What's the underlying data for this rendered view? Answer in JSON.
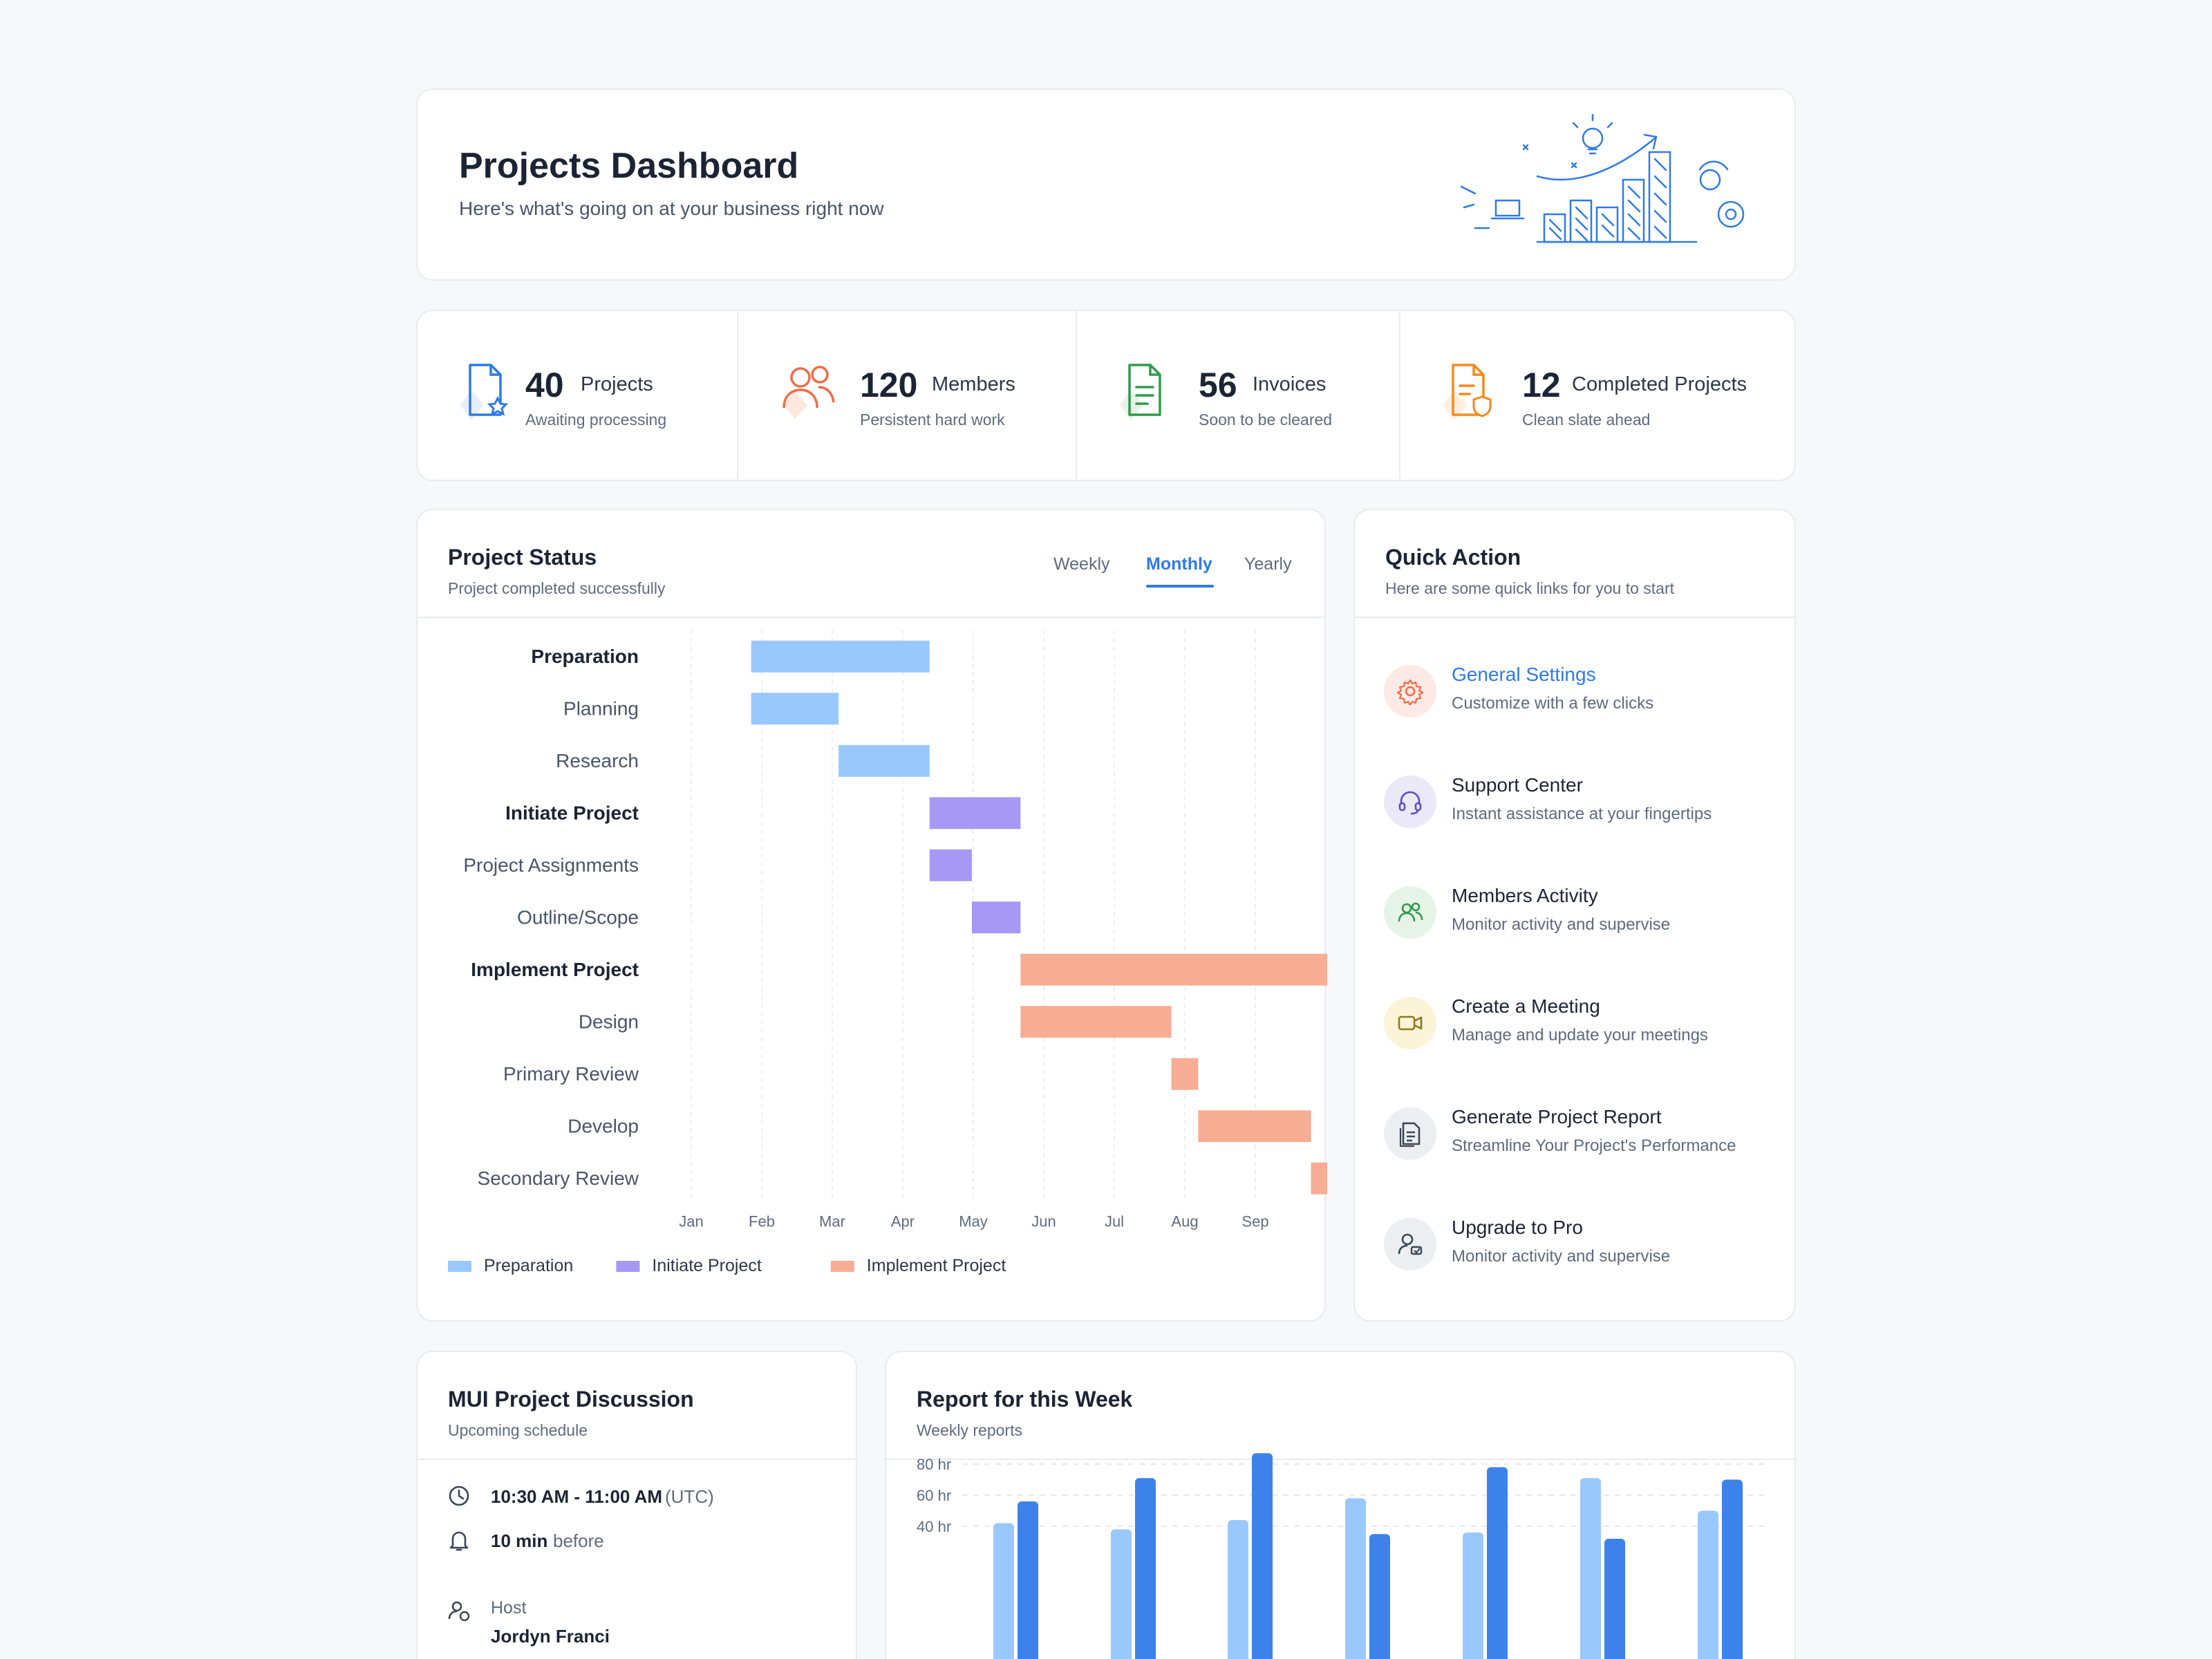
{
  "header": {
    "title": "Projects Dashboard",
    "subtitle": "Here's what's going on at your business right now"
  },
  "stats": [
    {
      "number": "40",
      "label": "Projects",
      "desc": "Awaiting processing",
      "icon": "document-star-icon",
      "color": "#2f7ae5"
    },
    {
      "number": "120",
      "label": "Members",
      "desc": "Persistent hard work",
      "icon": "users-icon",
      "color": "#f26b45"
    },
    {
      "number": "56",
      "label": "Invoices",
      "desc": "Soon to be cleared",
      "icon": "invoice-icon",
      "color": "#2e9a4a"
    },
    {
      "number": "12",
      "label": "Completed Projects",
      "desc": "Clean slate ahead",
      "icon": "document-shield-icon",
      "color": "#f5891f"
    }
  ],
  "project_status": {
    "title": "Project Status",
    "subtitle": "Project completed successfully",
    "tabs": [
      "Weekly",
      "Monthly",
      "Yearly"
    ],
    "active_tab": "Monthly"
  },
  "chart_data": {
    "type": "gantt",
    "x_ticks": [
      "Jan",
      "Feb",
      "Mar",
      "Apr",
      "May",
      "Jun",
      "Jul",
      "Aug",
      "Sep"
    ],
    "x_unit": "month",
    "tasks": [
      {
        "name": "Preparation",
        "group": "Preparation",
        "is_group": true,
        "start": 0.85,
        "end": 3.38
      },
      {
        "name": "Planning",
        "group": "Preparation",
        "is_group": false,
        "start": 0.85,
        "end": 2.09
      },
      {
        "name": "Research",
        "group": "Preparation",
        "is_group": false,
        "start": 2.09,
        "end": 3.38
      },
      {
        "name": "Initiate Project",
        "group": "Initiate Project",
        "is_group": true,
        "start": 3.38,
        "end": 4.67
      },
      {
        "name": "Project Assignments",
        "group": "Initiate Project",
        "is_group": false,
        "start": 3.38,
        "end": 3.98
      },
      {
        "name": "Outline/Scope",
        "group": "Initiate Project",
        "is_group": false,
        "start": 3.98,
        "end": 4.67
      },
      {
        "name": "Implement Project",
        "group": "Implement Project",
        "is_group": true,
        "start": 4.67,
        "end": 9.27
      },
      {
        "name": "Design",
        "group": "Implement Project",
        "is_group": false,
        "start": 4.67,
        "end": 6.81
      },
      {
        "name": "Primary Review",
        "group": "Implement Project",
        "is_group": false,
        "start": 6.81,
        "end": 7.19
      },
      {
        "name": "Develop",
        "group": "Implement Project",
        "is_group": false,
        "start": 7.19,
        "end": 8.79
      },
      {
        "name": "Secondary Review",
        "group": "Implement Project",
        "is_group": false,
        "start": 8.79,
        "end": 9.27
      }
    ],
    "legend": [
      {
        "name": "Preparation",
        "color": "#99c8fd"
      },
      {
        "name": "Initiate Project",
        "color": "#a898f5"
      },
      {
        "name": "Implement Project",
        "color": "#f6ad94"
      }
    ]
  },
  "quick_action": {
    "title": "Quick Action",
    "subtitle": "Here are some quick links for you to start",
    "items": [
      {
        "title": "General Settings",
        "desc": "Customize with a few clicks",
        "icon": "gear-icon",
        "bg": "#fde9e5",
        "color": "#f26b45"
      },
      {
        "title": "Support Center",
        "desc": "Instant assistance at your fingertips",
        "icon": "headset-icon",
        "bg": "#ebe9f7",
        "color": "#5b4ad1"
      },
      {
        "title": "Members Activity",
        "desc": "Monitor activity and supervise",
        "icon": "users-icon",
        "bg": "#e6f3e8",
        "color": "#2e9a4a"
      },
      {
        "title": "Create a Meeting",
        "desc": "Manage and update your meetings",
        "icon": "video-icon",
        "bg": "#fbf4d8",
        "color": "#8c7a1b"
      },
      {
        "title": "Generate Project Report",
        "desc": "Streamline Your Project's Performance",
        "icon": "report-icon",
        "bg": "#eceef2",
        "color": "#3c4657"
      },
      {
        "title": "Upgrade to Pro",
        "desc": "Monitor activity and supervise",
        "icon": "user-upgrade-icon",
        "bg": "#eceef2",
        "color": "#3c4657"
      }
    ]
  },
  "discussion": {
    "title": "MUI Project Discussion",
    "subtitle": "Upcoming schedule",
    "time": "10:30 AM - 11:00 AM",
    "timezone": "(UTC)",
    "reminder": "10 min",
    "reminder_suffix": "before",
    "host_label": "Host",
    "host_name": "Jordyn Franci"
  },
  "report": {
    "title": "Report for this Week",
    "subtitle": "Weekly reports",
    "y_ticks": [
      "80 hr",
      "60 hr",
      "40 hr"
    ]
  },
  "report_chart": {
    "type": "bar",
    "y_unit": "hr",
    "series": [
      {
        "values": [
          42,
          38,
          44,
          58,
          36,
          71,
          50
        ]
      },
      {
        "values": [
          56,
          71,
          87,
          35,
          78,
          32,
          70
        ]
      }
    ],
    "colors": [
      "#99c8fd",
      "#3d82ea"
    ]
  }
}
